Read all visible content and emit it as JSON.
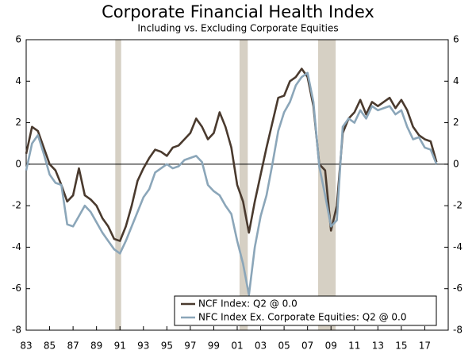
{
  "chart_data": {
    "type": "line",
    "title": "Corporate Financial Health Index",
    "subtitle": "Including vs. Excluding Corporate Equities",
    "x": [
      1983,
      1983.5,
      1984,
      1984.5,
      1985,
      1985.5,
      1986,
      1986.5,
      1987,
      1987.5,
      1988,
      1988.5,
      1989,
      1989.5,
      1990,
      1990.5,
      1991,
      1991.5,
      1992,
      1992.5,
      1993,
      1993.5,
      1994,
      1994.5,
      1995,
      1995.5,
      1996,
      1996.5,
      1997,
      1997.5,
      1998,
      1998.5,
      1999,
      1999.5,
      2000,
      2000.5,
      2001,
      2001.5,
      2002,
      2002.5,
      2003,
      2003.5,
      2004,
      2004.5,
      2005,
      2005.5,
      2006,
      2006.5,
      2007,
      2007.5,
      2008,
      2008.5,
      2009,
      2009.5,
      2010,
      2010.5,
      2011,
      2011.5,
      2012,
      2012.5,
      2013,
      2013.5,
      2014,
      2014.5,
      2015,
      2015.5,
      2016,
      2016.5,
      2017,
      2017.5,
      2018
    ],
    "series": [
      {
        "name": "NCF Index: Q2 @ 0.0",
        "color": "#4a3a2e",
        "values": [
          0.5,
          1.8,
          1.6,
          0.8,
          0.0,
          -0.3,
          -1.0,
          -1.8,
          -1.5,
          -0.2,
          -1.5,
          -1.7,
          -2.0,
          -2.6,
          -3.0,
          -3.6,
          -3.7,
          -3.0,
          -2.0,
          -0.8,
          -0.2,
          0.3,
          0.7,
          0.6,
          0.4,
          0.8,
          0.9,
          1.2,
          1.5,
          2.2,
          1.8,
          1.2,
          1.5,
          2.5,
          1.8,
          0.8,
          -1.0,
          -1.8,
          -3.3,
          -1.8,
          -0.5,
          0.8,
          2.0,
          3.2,
          3.3,
          4.0,
          4.2,
          4.6,
          4.2,
          2.8,
          0.0,
          -0.3,
          -3.2,
          -2.0,
          1.5,
          2.2,
          2.5,
          3.1,
          2.4,
          3.0,
          2.8,
          3.0,
          3.2,
          2.7,
          3.1,
          2.6,
          1.8,
          1.4,
          1.2,
          1.1,
          0.1
        ]
      },
      {
        "name": "NFC Index Ex. Corporate Equities: Q2 @ 0.0",
        "color": "#8ba6b9",
        "values": [
          -0.3,
          1.0,
          1.4,
          0.5,
          -0.5,
          -0.9,
          -1.0,
          -2.9,
          -3.0,
          -2.5,
          -2.0,
          -2.3,
          -2.8,
          -3.3,
          -3.7,
          -4.1,
          -4.3,
          -3.7,
          -3.0,
          -2.3,
          -1.6,
          -1.2,
          -0.4,
          -0.2,
          0.0,
          -0.2,
          -0.1,
          0.2,
          0.3,
          0.4,
          0.1,
          -1.0,
          -1.3,
          -1.5,
          -2.0,
          -2.4,
          -3.7,
          -4.8,
          -6.3,
          -4.0,
          -2.5,
          -1.5,
          0.0,
          1.6,
          2.5,
          3.0,
          3.8,
          4.2,
          4.4,
          3.0,
          -0.1,
          -1.5,
          -3.0,
          -2.7,
          1.8,
          2.2,
          2.0,
          2.6,
          2.2,
          2.8,
          2.6,
          2.7,
          2.8,
          2.4,
          2.6,
          1.8,
          1.2,
          1.3,
          0.8,
          0.7,
          0.0
        ]
      }
    ],
    "recessions": [
      [
        1990.6,
        1991.1
      ],
      [
        2001.2,
        2001.9
      ],
      [
        2007.9,
        2009.4
      ]
    ],
    "recession_color": "#d6d0c4",
    "xlim": [
      1983,
      2019
    ],
    "xticks": [
      {
        "value": 1983,
        "label": "83"
      },
      {
        "value": 1985,
        "label": "85"
      },
      {
        "value": 1987,
        "label": "87"
      },
      {
        "value": 1989,
        "label": "89"
      },
      {
        "value": 1991,
        "label": "91"
      },
      {
        "value": 1993,
        "label": "93"
      },
      {
        "value": 1995,
        "label": "95"
      },
      {
        "value": 1997,
        "label": "97"
      },
      {
        "value": 1999,
        "label": "99"
      },
      {
        "value": 2001,
        "label": "01"
      },
      {
        "value": 2003,
        "label": "03"
      },
      {
        "value": 2005,
        "label": "05"
      },
      {
        "value": 2007,
        "label": "07"
      },
      {
        "value": 2009,
        "label": "09"
      },
      {
        "value": 2011,
        "label": "11"
      },
      {
        "value": 2013,
        "label": "13"
      },
      {
        "value": 2015,
        "label": "15"
      },
      {
        "value": 2017,
        "label": "17"
      }
    ],
    "ylim": [
      -8,
      6
    ],
    "yticks": [
      -8,
      -6,
      -4,
      -2,
      0,
      2,
      4,
      6
    ],
    "y2lim": [
      -8,
      6
    ],
    "y2ticks": [
      -8,
      -6,
      -4,
      -2,
      0,
      2,
      4,
      6
    ],
    "legend": "bottom-right"
  }
}
